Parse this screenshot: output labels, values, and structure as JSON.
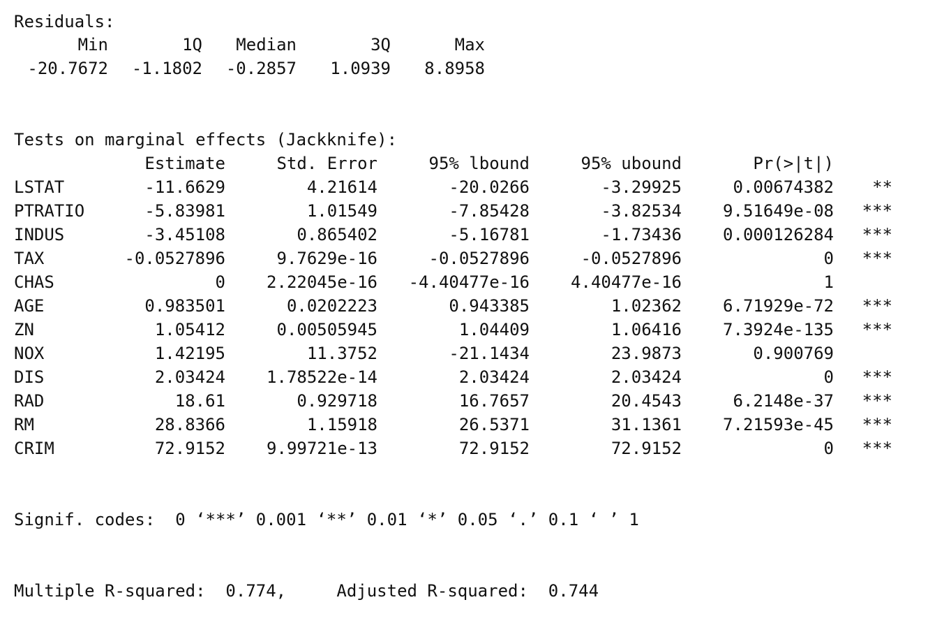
{
  "residuals": {
    "title": "Residuals:",
    "headers": [
      "Min",
      "1Q",
      "Median",
      "3Q",
      "Max"
    ],
    "values": [
      "-20.7672",
      "-1.1802",
      "-0.2857",
      "1.0939",
      "8.8958"
    ]
  },
  "marginal": {
    "title": "Tests on marginal effects (Jackknife):",
    "headers": [
      "Estimate",
      "Std. Error",
      "95% lbound",
      "95% ubound",
      "Pr(>|t|)"
    ],
    "rows": [
      {
        "name": "LSTAT",
        "cells": [
          "-11.6629",
          "4.21614",
          "-20.0266",
          "-3.29925",
          "0.00674382"
        ],
        "sig": "**"
      },
      {
        "name": "PTRATIO",
        "cells": [
          "-5.83981",
          "1.01549",
          "-7.85428",
          "-3.82534",
          "9.51649e-08"
        ],
        "sig": "***"
      },
      {
        "name": "INDUS",
        "cells": [
          "-3.45108",
          "0.865402",
          "-5.16781",
          "-1.73436",
          "0.000126284"
        ],
        "sig": "***"
      },
      {
        "name": "TAX",
        "cells": [
          "-0.0527896",
          "9.7629e-16",
          "-0.0527896",
          "-0.0527896",
          "0"
        ],
        "sig": "***"
      },
      {
        "name": "CHAS",
        "cells": [
          "0",
          "2.22045e-16",
          "-4.40477e-16",
          "4.40477e-16",
          "1"
        ],
        "sig": ""
      },
      {
        "name": "AGE",
        "cells": [
          "0.983501",
          "0.0202223",
          "0.943385",
          "1.02362",
          "6.71929e-72"
        ],
        "sig": "***"
      },
      {
        "name": "ZN",
        "cells": [
          "1.05412",
          "0.00505945",
          "1.04409",
          "1.06416",
          "7.3924e-135"
        ],
        "sig": "***"
      },
      {
        "name": "NOX",
        "cells": [
          "1.42195",
          "11.3752",
          "-21.1434",
          "23.9873",
          "0.900769"
        ],
        "sig": ""
      },
      {
        "name": "DIS",
        "cells": [
          "2.03424",
          "1.78522e-14",
          "2.03424",
          "2.03424",
          "0"
        ],
        "sig": "***"
      },
      {
        "name": "RAD",
        "cells": [
          "18.61",
          "0.929718",
          "16.7657",
          "20.4543",
          "6.2148e-37"
        ],
        "sig": "***"
      },
      {
        "name": "RM",
        "cells": [
          "28.8366",
          "1.15918",
          "26.5371",
          "31.1361",
          "7.21593e-45"
        ],
        "sig": "***"
      },
      {
        "name": "CRIM",
        "cells": [
          "72.9152",
          "9.99721e-13",
          "72.9152",
          "72.9152",
          "0"
        ],
        "sig": "***"
      }
    ]
  },
  "signif": "Signif. codes:  0 ‘***’ 0.001 ‘**’ 0.01 ‘*’ 0.05 ‘.’ 0.1 ‘ ’ 1",
  "rsquared": "Multiple R-squared:  0.774,     Adjusted R-squared:  0.744"
}
